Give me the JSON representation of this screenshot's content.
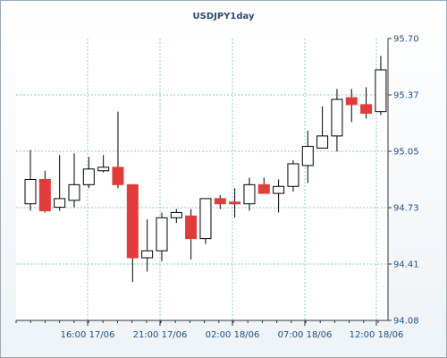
{
  "chart_data": {
    "type": "candlestick",
    "title": "USDJPY1day",
    "ylim": [
      94.08,
      95.7
    ],
    "y_ticks": [
      "95.70",
      "95.37",
      "95.05",
      "94.73",
      "94.41",
      "94.08"
    ],
    "x_ticks": [
      "16:00 17/06",
      "21:00 17/06",
      "02:00 18/06",
      "07:00 18/06",
      "12:00 18/06"
    ],
    "colors": {
      "up_fill": "#ffffff",
      "down_fill": "#e03c3c",
      "wick": "#000000",
      "grid": "#88c7cf",
      "text": "#1f4f82"
    },
    "candles": [
      {
        "o": 94.75,
        "h": 95.06,
        "l": 94.71,
        "c": 94.89
      },
      {
        "o": 94.89,
        "h": 94.94,
        "l": 94.7,
        "c": 94.71
      },
      {
        "o": 94.73,
        "h": 95.03,
        "l": 94.71,
        "c": 94.78
      },
      {
        "o": 94.77,
        "h": 95.04,
        "l": 94.73,
        "c": 94.86
      },
      {
        "o": 94.86,
        "h": 95.02,
        "l": 94.84,
        "c": 94.95
      },
      {
        "o": 94.94,
        "h": 95.03,
        "l": 94.93,
        "c": 94.96
      },
      {
        "o": 94.96,
        "h": 95.28,
        "l": 94.84,
        "c": 94.86
      },
      {
        "o": 94.86,
        "h": 94.86,
        "l": 94.3,
        "c": 94.44
      },
      {
        "o": 94.44,
        "h": 94.66,
        "l": 94.36,
        "c": 94.48
      },
      {
        "o": 94.48,
        "h": 94.7,
        "l": 94.42,
        "c": 94.67
      },
      {
        "o": 94.67,
        "h": 94.72,
        "l": 94.64,
        "c": 94.7
      },
      {
        "o": 94.68,
        "h": 94.72,
        "l": 94.43,
        "c": 94.55
      },
      {
        "o": 94.55,
        "h": 94.78,
        "l": 94.52,
        "c": 94.78
      },
      {
        "o": 94.78,
        "h": 94.8,
        "l": 94.72,
        "c": 94.75
      },
      {
        "o": 94.76,
        "h": 94.84,
        "l": 94.67,
        "c": 94.75
      },
      {
        "o": 94.75,
        "h": 94.9,
        "l": 94.71,
        "c": 94.86
      },
      {
        "o": 94.86,
        "h": 94.9,
        "l": 94.81,
        "c": 94.81
      },
      {
        "o": 94.81,
        "h": 94.89,
        "l": 94.7,
        "c": 94.85
      },
      {
        "o": 94.85,
        "h": 95.0,
        "l": 94.82,
        "c": 94.98
      },
      {
        "o": 94.97,
        "h": 95.17,
        "l": 94.87,
        "c": 95.08
      },
      {
        "o": 95.07,
        "h": 95.31,
        "l": 95.07,
        "c": 95.14
      },
      {
        "o": 95.14,
        "h": 95.41,
        "l": 95.05,
        "c": 95.35
      },
      {
        "o": 95.36,
        "h": 95.41,
        "l": 95.22,
        "c": 95.32
      },
      {
        "o": 95.32,
        "h": 95.42,
        "l": 95.24,
        "c": 95.27
      },
      {
        "o": 95.28,
        "h": 95.6,
        "l": 95.26,
        "c": 95.52
      }
    ]
  }
}
